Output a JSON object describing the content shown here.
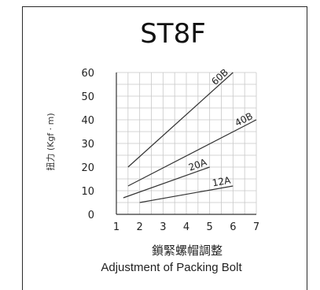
{
  "chart_data": {
    "type": "line",
    "title": "ST8F",
    "ylabel": "扭力 (Kgf · m)",
    "xlabel_zh": "鎖緊螺帽調整",
    "xlabel_en": "Adjustment of Packing Bolt",
    "xlim": [
      1,
      7
    ],
    "ylim": [
      0,
      60
    ],
    "x_ticks": [
      "1",
      "2",
      "3",
      "4",
      "5",
      "6",
      "7"
    ],
    "y_ticks": [
      "0",
      "10",
      "20",
      "30",
      "40",
      "50",
      "60"
    ],
    "grid": true,
    "series": [
      {
        "name": "60B",
        "x": [
          1.5,
          6.0
        ],
        "y": [
          20,
          60
        ]
      },
      {
        "name": "40B",
        "x": [
          1.5,
          7.0
        ],
        "y": [
          12,
          40
        ]
      },
      {
        "name": "20A",
        "x": [
          1.3,
          5.0
        ],
        "y": [
          7,
          20
        ]
      },
      {
        "name": "12A",
        "x": [
          2.0,
          6.0
        ],
        "y": [
          5,
          12
        ]
      }
    ]
  }
}
